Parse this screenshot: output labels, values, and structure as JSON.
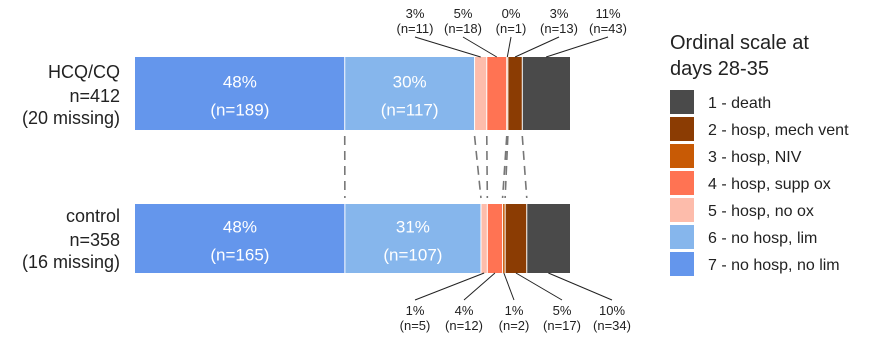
{
  "chart_data": {
    "type": "bar",
    "orientation": "horizontal-stacked-100",
    "legend_title_lines": [
      "Ordinal scale at",
      "days 28-35"
    ],
    "legend_placement": "right",
    "categories": [
      {
        "name": "1 - death",
        "color": "#4a4a4a"
      },
      {
        "name": "2 - hosp, mech vent",
        "color": "#8b3c03"
      },
      {
        "name": "3 - hosp, NIV",
        "color": "#c85a05"
      },
      {
        "name": "4 - hosp, supp ox",
        "color": "#ff7353"
      },
      {
        "name": "5 - hosp, no ox",
        "color": "#fdbcab"
      },
      {
        "name": "6 - no hosp, lim",
        "color": "#86b6ec"
      },
      {
        "name": "7 - no hosp, no lim",
        "color": "#6496ec"
      }
    ],
    "series": [
      {
        "label_lines": [
          "HCQ/CQ",
          "n=412",
          "(20 missing)"
        ],
        "counts": [
          189,
          117,
          11,
          18,
          1,
          13,
          43
        ],
        "pct_labels": [
          "48%",
          "30%",
          "3%",
          "5%",
          "0%",
          "3%",
          "11%"
        ],
        "n_labels": [
          "(n=189)",
          "(n=117)",
          "(n=11)",
          "(n=18)",
          "(n=1)",
          "(n=13)",
          "(n=43)"
        ]
      },
      {
        "label_lines": [
          "control",
          "n=358",
          "(16 missing)"
        ],
        "counts": [
          165,
          107,
          5,
          12,
          2,
          17,
          34
        ],
        "pct_labels": [
          "48%",
          "31%",
          "1%",
          "4%",
          "1%",
          "5%",
          "10%"
        ],
        "n_labels": [
          "(n=165)",
          "(n=107)",
          "(n=5)",
          "(n=12)",
          "(n=2)",
          "(n=17)",
          "(n=34)"
        ]
      }
    ],
    "segment_order_left_to_right": [
      "7 - no hosp, no lim",
      "6 - no hosp, lim",
      "5 - hosp, no ox",
      "4 - hosp, supp ox",
      "3 - hosp, NIV",
      "2 - hosp, mech vent",
      "1 - death"
    ]
  }
}
